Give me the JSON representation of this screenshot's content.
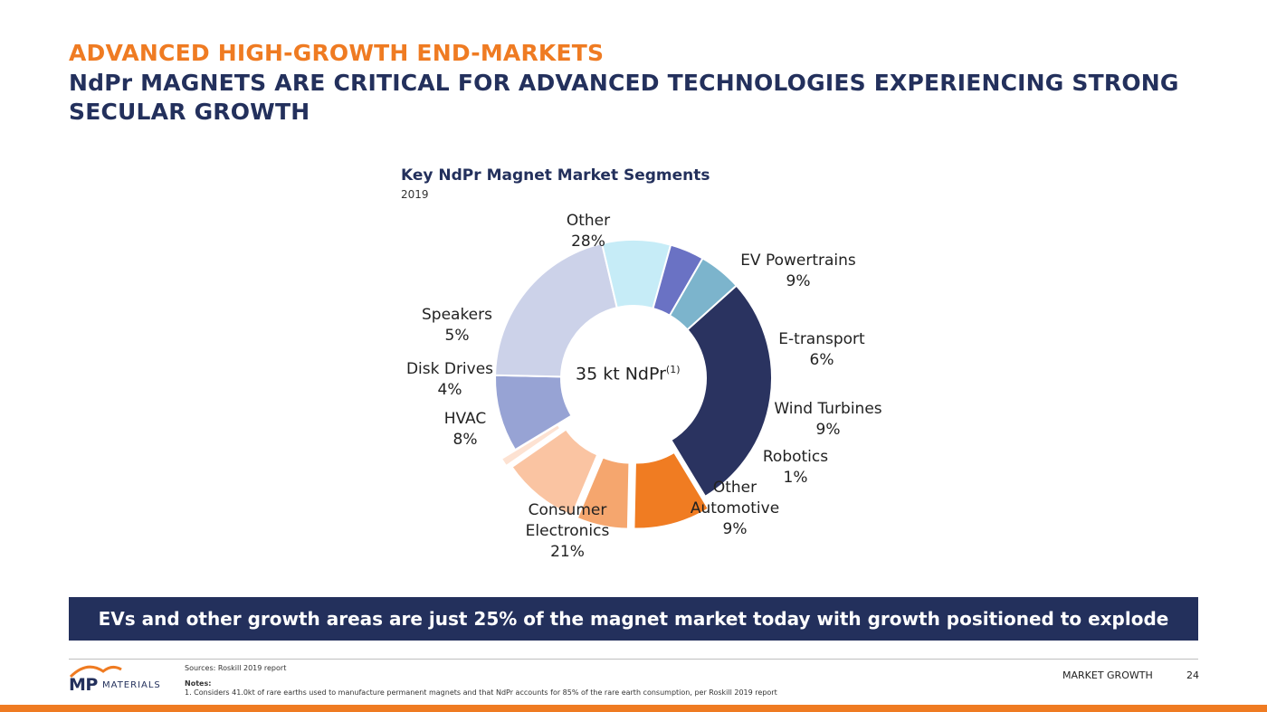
{
  "header": {
    "title": "ADVANCED HIGH-GROWTH END-MARKETS",
    "subtitle": "NdPr MAGNETS ARE CRITICAL FOR ADVANCED TECHNOLOGIES EXPERIENCING STRONG SECULAR GROWTH"
  },
  "chart_data": {
    "type": "pie",
    "title": "Key NdPr Magnet Market Segments",
    "subtitle": "2019",
    "center_label": "35 kt NdPr",
    "center_label_sup": "(1)",
    "categories": [
      "Other",
      "EV Powertrains",
      "E-transport",
      "Wind Turbines",
      "Robotics",
      "Other Automotive",
      "Consumer Electronics",
      "HVAC",
      "Disk Drives",
      "Speakers"
    ],
    "values": [
      28,
      9,
      6,
      9,
      1,
      9,
      21,
      8,
      4,
      5
    ],
    "display_labels": [
      {
        "name": [
          "Other"
        ],
        "pct": "28%"
      },
      {
        "name": [
          "EV Powertrains"
        ],
        "pct": "9%"
      },
      {
        "name": [
          "E-transport"
        ],
        "pct": "6%"
      },
      {
        "name": [
          "Wind Turbines"
        ],
        "pct": "9%"
      },
      {
        "name": [
          "Robotics"
        ],
        "pct": "1%"
      },
      {
        "name": [
          "Other",
          "Automotive"
        ],
        "pct": "9%"
      },
      {
        "name": [
          "Consumer",
          "Electronics"
        ],
        "pct": "21%"
      },
      {
        "name": [
          "HVAC"
        ],
        "pct": "8%"
      },
      {
        "name": [
          "Disk Drives"
        ],
        "pct": "4%"
      },
      {
        "name": [
          "Speakers"
        ],
        "pct": "5%"
      }
    ],
    "colors": [
      "#2a3360",
      "#f07c22",
      "#f5a66e",
      "#fac4a2",
      "#fde2d2",
      "#97a3d4",
      "#ccd2e9",
      "#c6ecf7",
      "#6a72c4",
      "#7cb4cc"
    ],
    "exploded": [
      "EV Powertrains",
      "E-transport",
      "Wind Turbines",
      "Robotics"
    ]
  },
  "callout": {
    "text": "EVs and other growth areas are just 25% of the magnet market today with growth positioned to explode"
  },
  "footer": {
    "sources": "Sources: Roskill 2019 report",
    "notes_heading": "Notes:",
    "note_1": "1.   Considers 41.0kt of rare earths used to manufacture permanent magnets and that NdPr accounts for 85% of the rare earth consumption, per Roskill 2019 report",
    "section": "MARKET GROWTH",
    "page_number": "24",
    "logo_mp": "MP",
    "logo_materials": "MATERIALS",
    "brand_color": "#ef7b22",
    "navy_color": "#23305c"
  }
}
